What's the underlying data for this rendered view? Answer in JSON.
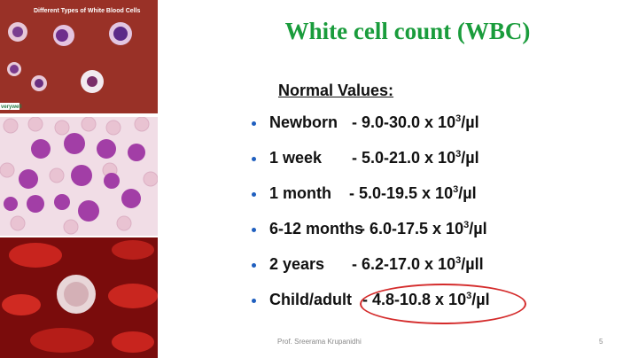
{
  "slide": {
    "title": "White cell count (WBC)",
    "subtitle": "Normal Values:",
    "footer": "Prof. Sreerama Krupanidhi",
    "page_number": "5"
  },
  "images": {
    "top_caption": "Different Types of White Blood Cells",
    "top_watermark": "verywell"
  },
  "values": [
    {
      "label": "Newborn",
      "range": "- 9.0-30.0 x 10",
      "unit": "/µl"
    },
    {
      "label": "1 week",
      "range": "- 5.0-21.0 x 10",
      "unit": "/µl"
    },
    {
      "label": "1 month",
      "range": "-    5.0-19.5 x 10",
      "unit": "/µl"
    },
    {
      "label": "6-12 months",
      "range": "- 6.0-17.5 x 10",
      "unit": "/µl"
    },
    {
      "label": "2 years",
      "range": "- 6.2-17.0 x 10",
      "unit": "/µll"
    },
    {
      "label": "Child/adult",
      "range": "- 4.8-10.8 x 10",
      "unit": "/µl"
    }
  ],
  "exponent": "3",
  "colors": {
    "title": "#1a9c3c",
    "highlight": "#d42b2b",
    "bullet": "#1f5fbf"
  }
}
